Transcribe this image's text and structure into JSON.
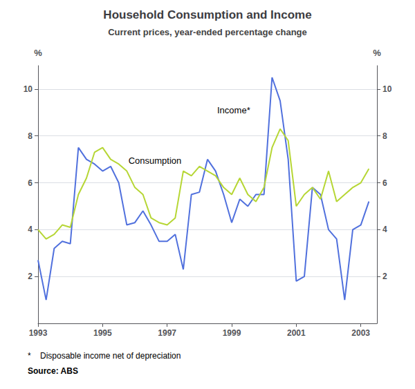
{
  "chart_data": {
    "type": "line",
    "title": "Household Consumption and Income",
    "subtitle": "Current prices, year-ended percentage change",
    "ylabel": "%",
    "y2label": "%",
    "footnote": "*    Disposable income net of depreciation",
    "source": "Source: ABS",
    "grid": true,
    "xlim": [
      1993.0,
      2003.5
    ],
    "xticks": [
      1993,
      1995,
      1997,
      1999,
      2001,
      2003
    ],
    "ylim": [
      0,
      11
    ],
    "yticks": [
      2,
      4,
      6,
      8,
      10
    ],
    "y2lim": [
      0,
      11
    ],
    "y2ticks": [
      2,
      4,
      6,
      8,
      10
    ],
    "annotations": [
      {
        "text": "Consumption",
        "x": 1995.8,
        "y": 6.75
      },
      {
        "text": "Income*",
        "x": 1998.55,
        "y": 8.9
      }
    ],
    "series": [
      {
        "x": [
          1993.0,
          1993.25,
          1993.5,
          1993.75,
          1994.0,
          1994.25,
          1994.5,
          1994.75,
          1995.0,
          1995.25,
          1995.5,
          1995.75,
          1996.0,
          1996.25,
          1996.5,
          1996.75,
          1997.0,
          1997.25,
          1997.5,
          1997.75,
          1998.0,
          1998.25,
          1998.5,
          1998.75,
          1999.0,
          1999.25,
          1999.5,
          1999.75,
          2000.0,
          2000.25,
          2000.5,
          2000.75,
          2001.0,
          2001.25,
          2001.5,
          2001.75,
          2002.0,
          2002.25,
          2002.5,
          2002.75,
          2003.0,
          2003.25
        ],
        "values": [
          2.7,
          1.0,
          3.2,
          3.5,
          3.4,
          7.5,
          7.0,
          6.8,
          6.5,
          6.7,
          6.0,
          4.2,
          4.3,
          4.8,
          4.2,
          3.5,
          3.5,
          3.8,
          2.3,
          5.5,
          5.6,
          7.0,
          6.5,
          5.5,
          4.3,
          5.3,
          5.0,
          5.5,
          5.5,
          10.5,
          9.5,
          7.0,
          1.8,
          2.0,
          5.8,
          5.5,
          4.0,
          3.6,
          1.0,
          4.0,
          4.2,
          5.2
        ]
      },
      {
        "x": [
          1993.0,
          1993.25,
          1993.5,
          1993.75,
          1994.0,
          1994.25,
          1994.5,
          1994.75,
          1995.0,
          1995.25,
          1995.5,
          1995.75,
          1996.0,
          1996.25,
          1996.5,
          1996.75,
          1997.0,
          1997.25,
          1997.5,
          1997.75,
          1998.0,
          1998.25,
          1998.5,
          1998.75,
          1999.0,
          1999.25,
          1999.5,
          1999.75,
          2000.0,
          2000.25,
          2000.5,
          2000.75,
          2001.0,
          2001.25,
          2001.5,
          2001.75,
          2002.0,
          2002.25,
          2002.5,
          2002.75,
          2003.0,
          2003.25
        ],
        "values": [
          4.0,
          3.6,
          3.8,
          4.2,
          4.1,
          5.5,
          6.2,
          7.3,
          7.5,
          7.0,
          6.8,
          6.5,
          5.8,
          5.5,
          4.5,
          4.3,
          4.2,
          4.5,
          6.5,
          6.3,
          6.7,
          6.5,
          6.3,
          5.8,
          5.5,
          6.2,
          5.5,
          5.2,
          5.8,
          7.5,
          8.3,
          7.8,
          5.0,
          5.5,
          5.8,
          5.3,
          6.5,
          5.2,
          5.5,
          5.8,
          6.0,
          6.6
        ]
      }
    ]
  }
}
